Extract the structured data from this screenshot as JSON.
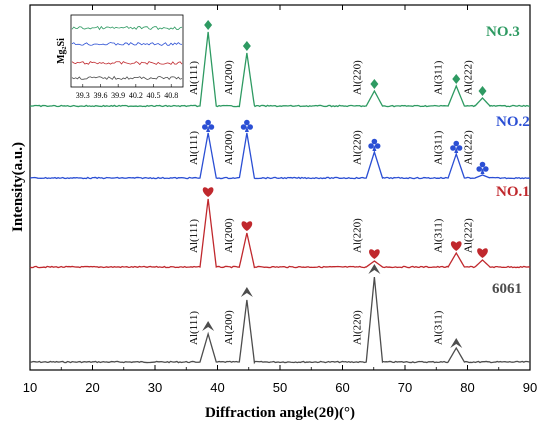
{
  "chart_data": {
    "type": "line",
    "xlabel": "Diffraction angle(2θ)(°)",
    "ylabel": "Intensity(a.u.)",
    "xlim": [
      10,
      90
    ],
    "xticks": [
      "10",
      "20",
      "30",
      "40",
      "50",
      "60",
      "70",
      "80",
      "90"
    ],
    "grid": false,
    "series": [
      {
        "name": "6061",
        "color": "#4d4d4d",
        "marker": "arrow-icon",
        "peaks": [
          {
            "x": 38.5,
            "height": 28,
            "label": "Al(111)"
          },
          {
            "x": 44.7,
            "height": 62,
            "label": "Al(200)"
          },
          {
            "x": 65.1,
            "height": 85,
            "label": "Al(220)"
          },
          {
            "x": 78.2,
            "height": 14,
            "label": "Al(311)"
          }
        ]
      },
      {
        "name": "NO.1",
        "color": "#c0282d",
        "marker": "heart-icon",
        "peaks": [
          {
            "x": 38.5,
            "height": 68,
            "label": "Al(111)"
          },
          {
            "x": 44.7,
            "height": 34,
            "label": "Al(200)"
          },
          {
            "x": 65.1,
            "height": 6,
            "label": "Al(220)"
          },
          {
            "x": 78.2,
            "height": 14,
            "label": "Al(311)"
          },
          {
            "x": 82.4,
            "height": 7,
            "label": "Al(222)"
          }
        ]
      },
      {
        "name": "NO.2",
        "color": "#2b4fd4",
        "marker": "club-icon",
        "peaks": [
          {
            "x": 38.5,
            "height": 45,
            "label": "Al(111)"
          },
          {
            "x": 44.7,
            "height": 45,
            "label": "Al(200)"
          },
          {
            "x": 65.1,
            "height": 26,
            "label": "Al(220)"
          },
          {
            "x": 78.2,
            "height": 24,
            "label": "Al(311)"
          },
          {
            "x": 82.4,
            "height": 3,
            "label": "Al(222)"
          }
        ]
      },
      {
        "name": "NO.3",
        "color": "#2e9a62",
        "marker": "diamond-icon",
        "peaks": [
          {
            "x": 38.5,
            "height": 74,
            "label": "Al(111)"
          },
          {
            "x": 44.7,
            "height": 53,
            "label": "Al(200)"
          },
          {
            "x": 65.1,
            "height": 15,
            "label": "Al(220)"
          },
          {
            "x": 78.2,
            "height": 20,
            "label": "Al(311)"
          },
          {
            "x": 82.4,
            "height": 8,
            "label": "Al(222)"
          }
        ]
      }
    ],
    "inset": {
      "ylabel": "Mg₂Si",
      "xlim": [
        39.1,
        41.0
      ],
      "xticks": [
        "39.3",
        "39.6",
        "39.9",
        "40.2",
        "40.5",
        "40.8"
      ],
      "series_colors": [
        "#2e9a62",
        "#2b4fd4",
        "#c0282d",
        "#4d4d4d"
      ]
    }
  }
}
